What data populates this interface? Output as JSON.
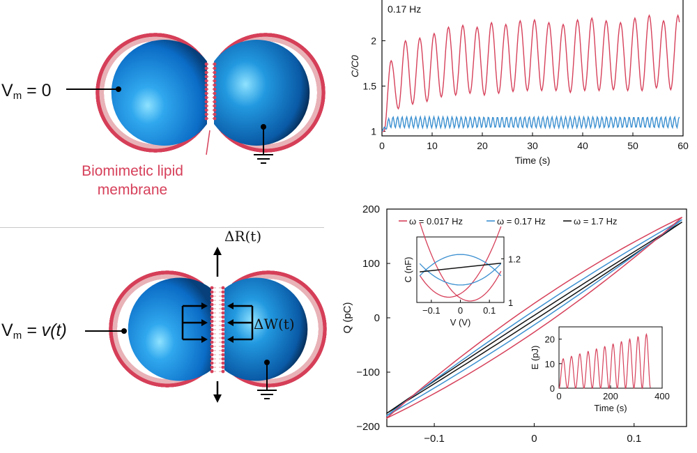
{
  "panel_a": {
    "vm_prefix": "V",
    "vm_sub": "m",
    "vm_value": "= 0",
    "caption_line1": "Biomimetic lipid",
    "caption_line2": "membrane"
  },
  "panel_b": {
    "vm_prefix": "V",
    "vm_sub": "m",
    "vm_value": "= v(t)",
    "delta_r": "ΔR(t)",
    "delta_w": "ΔW(t)"
  },
  "colors": {
    "red": "#d6405a",
    "blue": "#3a8fd0",
    "black": "#111111",
    "sphere": "#1a86d6"
  },
  "chart_data": [
    {
      "type": "line",
      "title": "0.17 Hz",
      "xlabel": "Time (s)",
      "ylabel": "C/C0",
      "xlim": [
        0,
        60
      ],
      "ylim": [
        0.95,
        2.45
      ],
      "xticks": [
        0,
        10,
        20,
        30,
        40,
        50,
        60
      ],
      "yticks": [
        1,
        1.5,
        2
      ],
      "series": [
        {
          "color": "red",
          "peaks": [
            1.78,
            2.0,
            2.03,
            2.08,
            2.15,
            2.17,
            2.15,
            2.2,
            2.18,
            2.22,
            2.23,
            2.2,
            2.18,
            2.23,
            2.25,
            2.22,
            2.2,
            2.25,
            2.28,
            2.22,
            2.28
          ],
          "troughs": [
            1.25,
            1.3,
            1.33,
            1.38,
            1.4,
            1.42,
            1.4,
            1.42,
            1.44,
            1.45,
            1.45,
            1.45,
            1.43,
            1.45,
            1.45,
            1.46,
            1.45,
            1.45,
            1.48,
            1.46,
            1.5
          ]
        },
        {
          "color": "blue",
          "mean": 1.1,
          "amplitude": 0.06,
          "frequency_hz": 0.34
        }
      ]
    },
    {
      "type": "line",
      "xlabel": "V (V)",
      "ylabel": "Q (pC)",
      "xlim": [
        -0.15,
        0.15
      ],
      "ylim": [
        -200,
        200
      ],
      "xticks": [
        -0.1,
        0,
        0.1
      ],
      "yticks": [
        -200,
        -100,
        0,
        100,
        200
      ],
      "legend": "top",
      "series": [
        {
          "name": "ω = 0.017 Hz",
          "color": "red",
          "slope_pc_per_v": 1250,
          "loop_halfwidth_pc": 12
        },
        {
          "name": "ω = 0.17 Hz",
          "color": "blue",
          "slope_pc_per_v": 1220,
          "loop_halfwidth_pc": 6
        },
        {
          "name": "ω = 1.7 Hz",
          "color": "black",
          "slope_pc_per_v": 1190,
          "loop_halfwidth_pc": 2
        }
      ],
      "inset_capacitance": {
        "xlabel": "V (V)",
        "ylabel": "C (nF)",
        "xlim": [
          -0.15,
          0.15
        ],
        "ylim": [
          1.0,
          1.3
        ],
        "xticks": [
          -0.1,
          0,
          0.1
        ],
        "yticks": [
          1,
          1.2
        ]
      },
      "inset_energy": {
        "xlabel": "Time (s)",
        "ylabel": "E (pJ)",
        "xlim": [
          0,
          400
        ],
        "ylim": [
          0,
          25
        ],
        "xticks": [
          0,
          200,
          400
        ],
        "yticks": [
          0,
          10,
          20
        ],
        "peaks_pj": [
          12,
          13,
          14,
          15,
          16,
          17,
          18,
          19,
          20,
          21,
          22
        ]
      }
    }
  ]
}
